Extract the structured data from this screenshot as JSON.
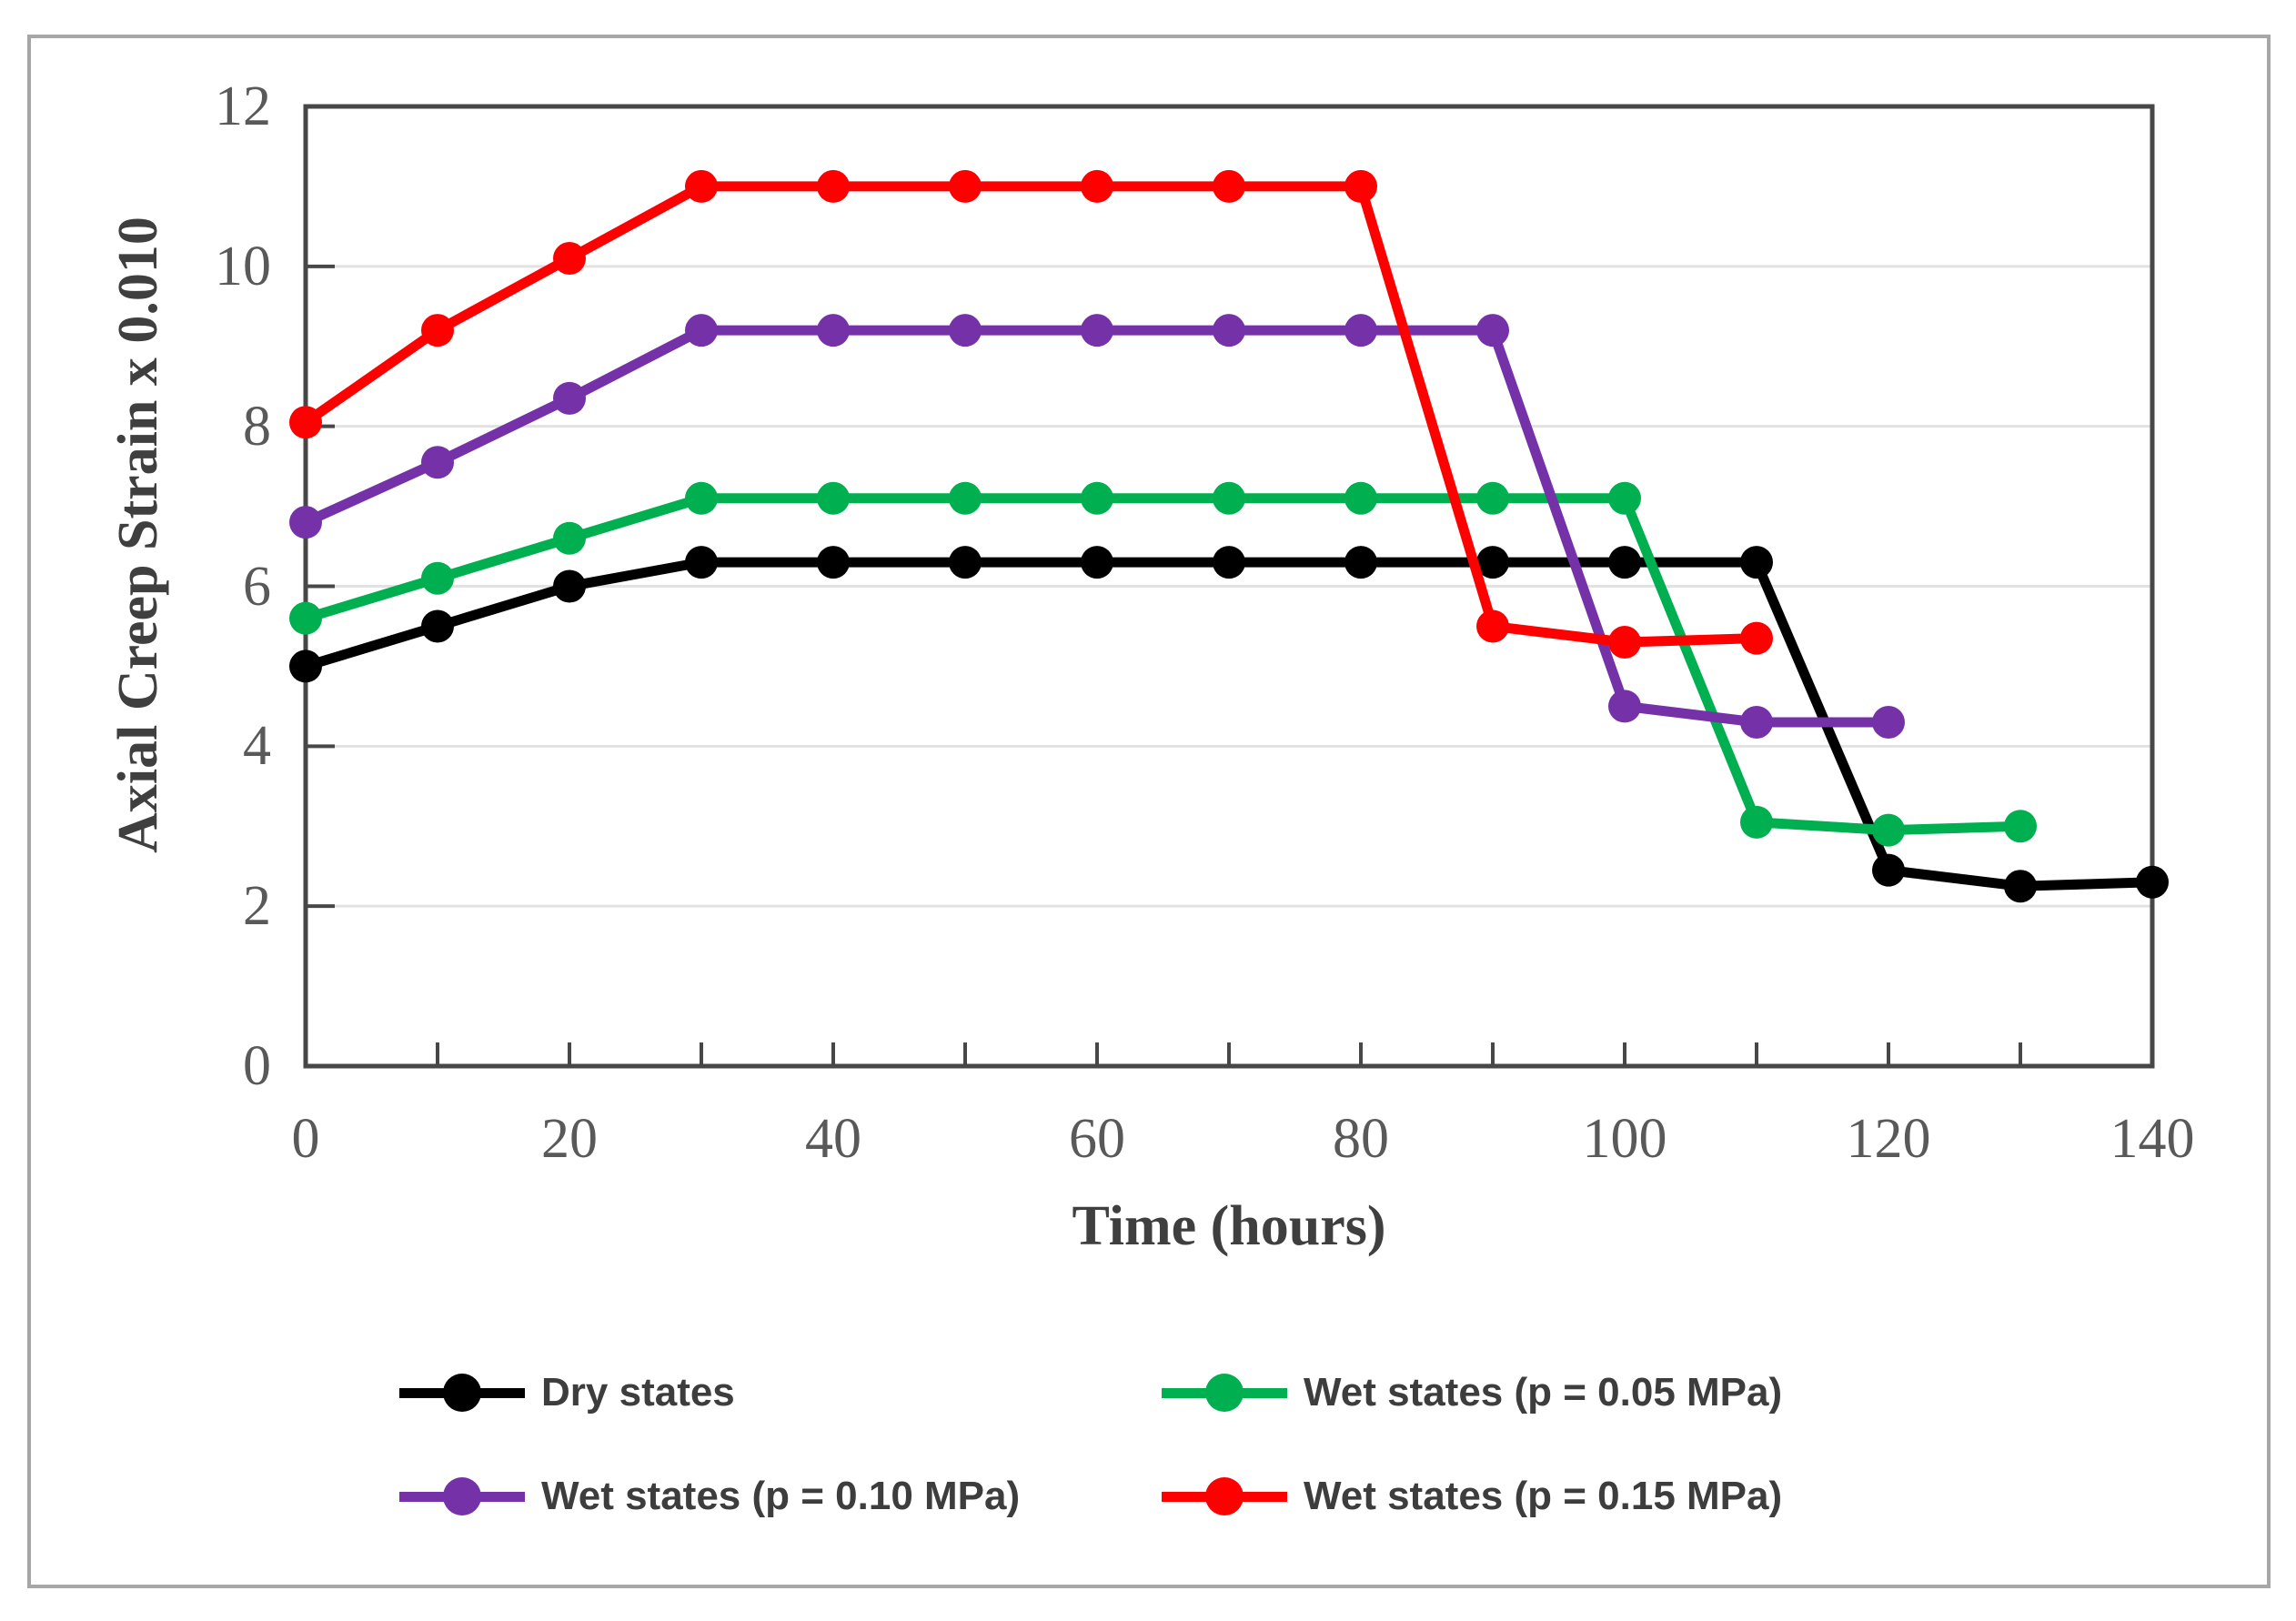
{
  "chart_data": {
    "type": "line",
    "title": "",
    "xlabel": "Time (hours)",
    "ylabel": "Axial Creep Strain x 0.010",
    "xlim": [
      0,
      140
    ],
    "ylim": [
      0,
      12
    ],
    "x_tick_labels": [
      0,
      20,
      40,
      60,
      80,
      100,
      120,
      140
    ],
    "x_minor_ticks": [
      0,
      10,
      20,
      30,
      40,
      50,
      60,
      70,
      80,
      90,
      100,
      110,
      120,
      130,
      140
    ],
    "y_tick_labels": [
      0,
      2,
      4,
      6,
      8,
      10,
      12
    ],
    "grid_horizontal_at": [
      2,
      4,
      6,
      8,
      10
    ],
    "grid_on": true,
    "legend_position": "below chart, two rows",
    "colors": {
      "grid": "#e2e2e2",
      "axis": "#474747",
      "tick_label": "#595959",
      "axis_title": "#3f3f3f",
      "legend_text": "#3d3d3d",
      "frame": "#a6a6a6",
      "background": "#ffffff"
    },
    "series": [
      {
        "name": "Dry states",
        "color": "#000000",
        "x": [
          0,
          10,
          20,
          30,
          40,
          50,
          60,
          70,
          80,
          90,
          100,
          110,
          120,
          130,
          140
        ],
        "y": [
          5.0,
          5.5,
          6.0,
          6.3,
          6.3,
          6.3,
          6.3,
          6.3,
          6.3,
          6.3,
          6.3,
          6.3,
          2.45,
          2.25,
          2.3
        ]
      },
      {
        "name": "Wet states (p = 0.05 MPa)",
        "color": "#00b050",
        "x": [
          0,
          10,
          20,
          30,
          40,
          50,
          60,
          70,
          80,
          90,
          100,
          110,
          120,
          130
        ],
        "y": [
          5.6,
          6.1,
          6.6,
          7.1,
          7.1,
          7.1,
          7.1,
          7.1,
          7.1,
          7.1,
          7.1,
          3.05,
          2.95,
          3.0
        ]
      },
      {
        "name": "Wet states (p = 0.10 MPa)",
        "color": "#7431a8",
        "x": [
          0,
          10,
          20,
          30,
          40,
          50,
          60,
          70,
          80,
          90,
          100,
          110,
          120
        ],
        "y": [
          6.8,
          7.55,
          8.35,
          9.2,
          9.2,
          9.2,
          9.2,
          9.2,
          9.2,
          9.2,
          4.5,
          4.3,
          4.3
        ]
      },
      {
        "name": "Wet states (p = 0.15 MPa)",
        "color": "#fe0000",
        "x": [
          0,
          10,
          20,
          30,
          40,
          50,
          60,
          70,
          80,
          90,
          100,
          110
        ],
        "y": [
          8.05,
          9.2,
          10.1,
          11.0,
          11.0,
          11.0,
          11.0,
          11.0,
          11.0,
          5.5,
          5.3,
          5.35
        ]
      }
    ]
  }
}
